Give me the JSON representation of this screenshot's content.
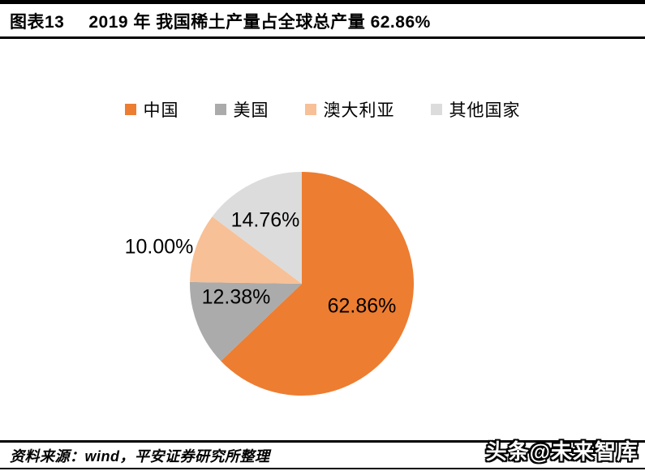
{
  "header": {
    "figure_label": "图表13",
    "title": "2019 年 我国稀土产量占全球总产量 62.86%"
  },
  "chart_data": {
    "type": "pie",
    "title": "2019 年 我国稀土产量占全球总产量 62.86%",
    "categories": [
      "中国",
      "美国",
      "澳大利亚",
      "其他国家"
    ],
    "values": [
      62.86,
      12.38,
      10.0,
      14.76
    ],
    "labels": [
      "62.86%",
      "12.38%",
      "10.00%",
      "14.76%"
    ],
    "colors": [
      "#ED7D31",
      "#ABABAB",
      "#F8C096",
      "#DCDCDC"
    ],
    "unit": "%",
    "legend_position": "top",
    "start_angle_deg": 0,
    "direction": "clockwise"
  },
  "footer": {
    "source": "资料来源：wind，平安证券研究所整理",
    "watermark": "头条@未来智库"
  }
}
